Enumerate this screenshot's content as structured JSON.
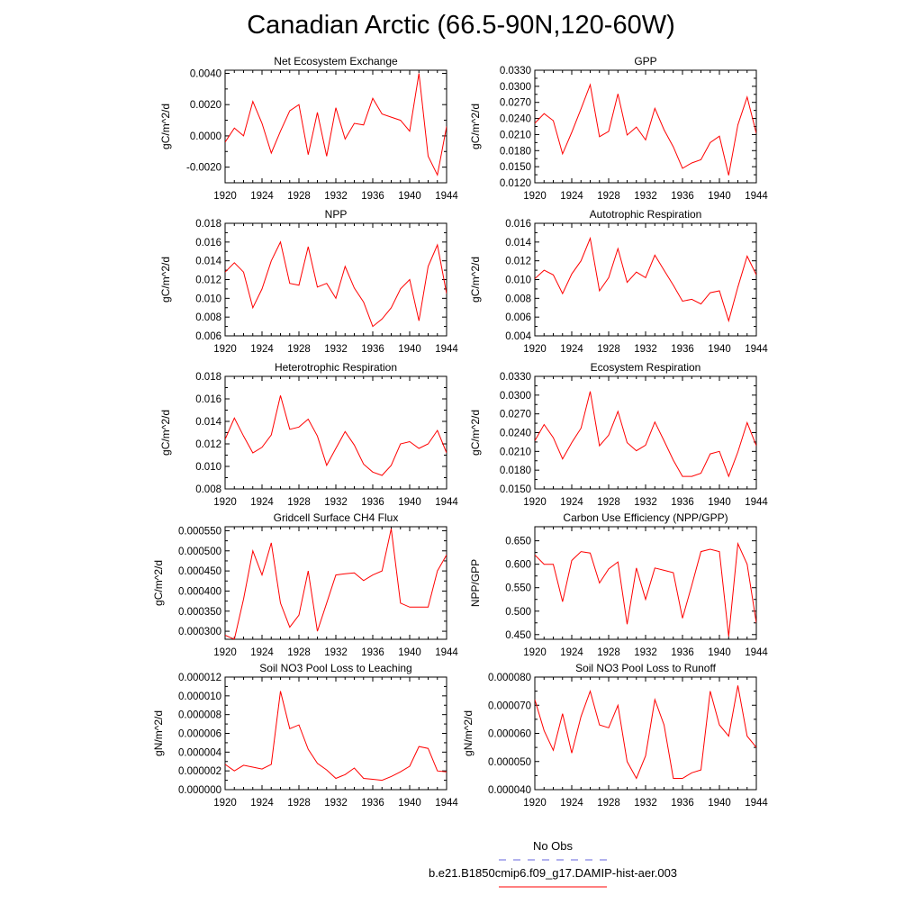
{
  "title": "Canadian Arctic (66.5-90N,120-60W)",
  "colors": {
    "series": "#ff0000",
    "obs": "#6666dd",
    "axis": "#000000"
  },
  "legend": {
    "obs_label": "No Obs",
    "case_label": "b.e21.B1850cmip6.f09_g17.DAMIP-hist-aer.003"
  },
  "chart_data": [
    {
      "type": "line",
      "title": "Net Ecosystem Exchange",
      "ylabel": "gC/m^2/d",
      "xlim": [
        1920,
        1944
      ],
      "ylim": [
        -0.003,
        0.0042
      ],
      "yticks": [
        -0.002,
        0.0,
        0.002,
        0.004
      ],
      "ytick_labels": [
        "-0.0020",
        "0.0000",
        "0.0020",
        "0.0040"
      ],
      "xticks": [
        1920,
        1924,
        1928,
        1932,
        1936,
        1940,
        1944
      ],
      "xtick_labels": [
        "1920",
        "1924",
        "1928",
        "1932",
        "1936",
        "1940",
        "1944"
      ],
      "x": [
        1920,
        1921,
        1922,
        1923,
        1924,
        1925,
        1926,
        1927,
        1928,
        1929,
        1930,
        1931,
        1932,
        1933,
        1934,
        1935,
        1936,
        1937,
        1938,
        1939,
        1940,
        1941,
        1942,
        1943,
        1944
      ],
      "values": [
        -0.0004,
        0.0005,
        0.0,
        0.0022,
        0.0008,
        -0.0011,
        0.0003,
        0.0016,
        0.002,
        -0.0012,
        0.0015,
        -0.0013,
        0.0018,
        -0.0002,
        0.0008,
        0.0007,
        0.0024,
        0.0014,
        0.0012,
        0.001,
        0.0003,
        0.004,
        -0.0013,
        -0.0025,
        0.0006
      ]
    },
    {
      "type": "line",
      "title": "GPP",
      "ylabel": "gC/m^2/d",
      "xlim": [
        1920,
        1944
      ],
      "ylim": [
        0.012,
        0.033
      ],
      "yticks": [
        0.012,
        0.015,
        0.018,
        0.021,
        0.024,
        0.027,
        0.03,
        0.033
      ],
      "ytick_labels": [
        "0.0120",
        "0.0150",
        "0.0180",
        "0.0210",
        "0.0240",
        "0.0270",
        "0.0300",
        "0.0330"
      ],
      "xticks": [
        1920,
        1924,
        1928,
        1932,
        1936,
        1940,
        1944
      ],
      "xtick_labels": [
        "1920",
        "1924",
        "1928",
        "1932",
        "1936",
        "1940",
        "1944"
      ],
      "x": [
        1920,
        1921,
        1922,
        1923,
        1924,
        1925,
        1926,
        1927,
        1928,
        1929,
        1930,
        1931,
        1932,
        1933,
        1934,
        1935,
        1936,
        1937,
        1938,
        1939,
        1940,
        1941,
        1942,
        1943,
        1944
      ],
      "values": [
        0.0231,
        0.0249,
        0.0236,
        0.0174,
        0.0214,
        0.0258,
        0.0303,
        0.0206,
        0.0216,
        0.0286,
        0.0209,
        0.0224,
        0.02,
        0.0259,
        0.0219,
        0.0187,
        0.0147,
        0.0157,
        0.0163,
        0.0195,
        0.0207,
        0.0134,
        0.0228,
        0.028,
        0.0212
      ]
    },
    {
      "type": "line",
      "title": "NPP",
      "ylabel": "gC/m^2/d",
      "xlim": [
        1920,
        1944
      ],
      "ylim": [
        0.006,
        0.018
      ],
      "yticks": [
        0.006,
        0.008,
        0.01,
        0.012,
        0.014,
        0.016,
        0.018
      ],
      "ytick_labels": [
        "0.006",
        "0.008",
        "0.010",
        "0.012",
        "0.014",
        "0.016",
        "0.018"
      ],
      "xticks": [
        1920,
        1924,
        1928,
        1932,
        1936,
        1940,
        1944
      ],
      "xtick_labels": [
        "1920",
        "1924",
        "1928",
        "1932",
        "1936",
        "1940",
        "1944"
      ],
      "x": [
        1920,
        1921,
        1922,
        1923,
        1924,
        1925,
        1926,
        1927,
        1928,
        1929,
        1930,
        1931,
        1932,
        1933,
        1934,
        1935,
        1936,
        1937,
        1938,
        1939,
        1940,
        1941,
        1942,
        1943,
        1944
      ],
      "values": [
        0.0128,
        0.0138,
        0.0128,
        0.009,
        0.011,
        0.014,
        0.016,
        0.0116,
        0.0114,
        0.0155,
        0.0112,
        0.0116,
        0.01,
        0.0134,
        0.0111,
        0.0096,
        0.007,
        0.0078,
        0.009,
        0.011,
        0.012,
        0.0076,
        0.0134,
        0.0157,
        0.0105
      ]
    },
    {
      "type": "line",
      "title": "Autotrophic Respiration",
      "ylabel": "gC/m^2/d",
      "xlim": [
        1920,
        1944
      ],
      "ylim": [
        0.004,
        0.016
      ],
      "yticks": [
        0.004,
        0.006,
        0.008,
        0.01,
        0.012,
        0.014,
        0.016
      ],
      "ytick_labels": [
        "0.004",
        "0.006",
        "0.008",
        "0.010",
        "0.012",
        "0.014",
        "0.016"
      ],
      "xticks": [
        1920,
        1924,
        1928,
        1932,
        1936,
        1940,
        1944
      ],
      "xtick_labels": [
        "1920",
        "1924",
        "1928",
        "1932",
        "1936",
        "1940",
        "1944"
      ],
      "x": [
        1920,
        1921,
        1922,
        1923,
        1924,
        1925,
        1926,
        1927,
        1928,
        1929,
        1930,
        1931,
        1932,
        1933,
        1934,
        1935,
        1936,
        1937,
        1938,
        1939,
        1940,
        1941,
        1942,
        1943,
        1944
      ],
      "values": [
        0.0101,
        0.011,
        0.0105,
        0.0085,
        0.0106,
        0.012,
        0.0144,
        0.0088,
        0.0102,
        0.0133,
        0.0097,
        0.0108,
        0.0102,
        0.0126,
        0.011,
        0.0094,
        0.0077,
        0.0079,
        0.0074,
        0.0086,
        0.0088,
        0.0056,
        0.0092,
        0.0125,
        0.0105
      ]
    },
    {
      "type": "line",
      "title": "Heterotrophic Respiration",
      "ylabel": "gC/m^2/d",
      "xlim": [
        1920,
        1944
      ],
      "ylim": [
        0.008,
        0.018
      ],
      "yticks": [
        0.008,
        0.01,
        0.012,
        0.014,
        0.016,
        0.018
      ],
      "ytick_labels": [
        "0.008",
        "0.010",
        "0.012",
        "0.014",
        "0.016",
        "0.018"
      ],
      "xticks": [
        1920,
        1924,
        1928,
        1932,
        1936,
        1940,
        1944
      ],
      "xtick_labels": [
        "1920",
        "1924",
        "1928",
        "1932",
        "1936",
        "1940",
        "1944"
      ],
      "x": [
        1920,
        1921,
        1922,
        1923,
        1924,
        1925,
        1926,
        1927,
        1928,
        1929,
        1930,
        1931,
        1932,
        1933,
        1934,
        1935,
        1936,
        1937,
        1938,
        1939,
        1940,
        1941,
        1942,
        1943,
        1944
      ],
      "values": [
        0.0124,
        0.0143,
        0.0127,
        0.0112,
        0.0117,
        0.0128,
        0.0163,
        0.0133,
        0.0135,
        0.0142,
        0.0127,
        0.0101,
        0.0116,
        0.0131,
        0.0119,
        0.0102,
        0.0095,
        0.0092,
        0.0101,
        0.012,
        0.0122,
        0.0116,
        0.012,
        0.0132,
        0.0112
      ]
    },
    {
      "type": "line",
      "title": "Ecosystem Respiration",
      "ylabel": "gC/m^2/d",
      "xlim": [
        1920,
        1944
      ],
      "ylim": [
        0.015,
        0.033
      ],
      "yticks": [
        0.015,
        0.018,
        0.021,
        0.024,
        0.027,
        0.03,
        0.033
      ],
      "ytick_labels": [
        "0.0150",
        "0.0180",
        "0.0210",
        "0.0240",
        "0.0270",
        "0.0300",
        "0.0330"
      ],
      "xticks": [
        1920,
        1924,
        1928,
        1932,
        1936,
        1940,
        1944
      ],
      "xtick_labels": [
        "1920",
        "1924",
        "1928",
        "1932",
        "1936",
        "1940",
        "1944"
      ],
      "x": [
        1920,
        1921,
        1922,
        1923,
        1924,
        1925,
        1926,
        1927,
        1928,
        1929,
        1930,
        1931,
        1932,
        1933,
        1934,
        1935,
        1936,
        1937,
        1938,
        1939,
        1940,
        1941,
        1942,
        1943,
        1944
      ],
      "values": [
        0.0227,
        0.0253,
        0.0232,
        0.0198,
        0.0224,
        0.0247,
        0.0306,
        0.0219,
        0.0236,
        0.0274,
        0.0224,
        0.0211,
        0.022,
        0.0257,
        0.0227,
        0.0196,
        0.017,
        0.017,
        0.0175,
        0.0206,
        0.021,
        0.017,
        0.0209,
        0.0256,
        0.0219
      ]
    },
    {
      "type": "line",
      "title": "Gridcell Surface CH4 Flux",
      "ylabel": "gC/m^2/d",
      "xlim": [
        1920,
        1944
      ],
      "ylim": [
        0.00028,
        0.00056
      ],
      "yticks": [
        0.0003,
        0.00035,
        0.0004,
        0.00045,
        0.0005,
        0.00055
      ],
      "ytick_labels": [
        "0.000300",
        "0.000350",
        "0.000400",
        "0.000450",
        "0.000500",
        "0.000550"
      ],
      "xticks": [
        1920,
        1924,
        1928,
        1932,
        1936,
        1940,
        1944
      ],
      "xtick_labels": [
        "1920",
        "1924",
        "1928",
        "1932",
        "1936",
        "1940",
        "1944"
      ],
      "x": [
        1920,
        1921,
        1922,
        1923,
        1924,
        1925,
        1926,
        1927,
        1928,
        1929,
        1930,
        1931,
        1932,
        1933,
        1934,
        1935,
        1936,
        1937,
        1938,
        1939,
        1940,
        1941,
        1942,
        1943,
        1944
      ],
      "values": [
        0.00029,
        0.00028,
        0.00038,
        0.0005,
        0.00044,
        0.00052,
        0.00037,
        0.00031,
        0.00034,
        0.00045,
        0.0003,
        0.00037,
        0.00044,
        0.000443,
        0.000445,
        0.000426,
        0.00044,
        0.00045,
        0.000555,
        0.00037,
        0.00036,
        0.00036,
        0.00036,
        0.00045,
        0.00049
      ]
    },
    {
      "type": "line",
      "title": "Carbon Use Efficiency (NPP/GPP)",
      "ylabel": "NPP/GPP",
      "xlim": [
        1920,
        1944
      ],
      "ylim": [
        0.44,
        0.68
      ],
      "yticks": [
        0.45,
        0.5,
        0.55,
        0.6,
        0.65
      ],
      "ytick_labels": [
        "0.450",
        "0.500",
        "0.550",
        "0.600",
        "0.650"
      ],
      "xticks": [
        1920,
        1924,
        1928,
        1932,
        1936,
        1940,
        1944
      ],
      "xtick_labels": [
        "1920",
        "1924",
        "1928",
        "1932",
        "1936",
        "1940",
        "1944"
      ],
      "x": [
        1920,
        1921,
        1922,
        1923,
        1924,
        1925,
        1926,
        1927,
        1928,
        1929,
        1930,
        1931,
        1932,
        1933,
        1934,
        1935,
        1936,
        1937,
        1938,
        1939,
        1940,
        1941,
        1942,
        1943,
        1944
      ],
      "values": [
        0.62,
        0.6,
        0.6,
        0.52,
        0.608,
        0.627,
        0.624,
        0.56,
        0.59,
        0.605,
        0.472,
        0.592,
        0.525,
        0.592,
        0.587,
        0.582,
        0.485,
        0.555,
        0.627,
        0.632,
        0.627,
        0.446,
        0.644,
        0.6,
        0.475
      ]
    },
    {
      "type": "line",
      "title": "Soil NO3 Pool Loss to Leaching",
      "ylabel": "gN/m^2/d",
      "xlim": [
        1920,
        1944
      ],
      "ylim": [
        0.0,
        1.2e-05
      ],
      "yticks": [
        0.0,
        2e-06,
        4e-06,
        6e-06,
        8e-06,
        1e-05,
        1.2e-05
      ],
      "ytick_labels": [
        "0.000000",
        "0.000002",
        "0.000004",
        "0.000006",
        "0.000008",
        "0.000010",
        "0.000012"
      ],
      "xticks": [
        1920,
        1924,
        1928,
        1932,
        1936,
        1940,
        1944
      ],
      "xtick_labels": [
        "1920",
        "1924",
        "1928",
        "1932",
        "1936",
        "1940",
        "1944"
      ],
      "x": [
        1920,
        1921,
        1922,
        1923,
        1924,
        1925,
        1926,
        1927,
        1928,
        1929,
        1930,
        1931,
        1932,
        1933,
        1934,
        1935,
        1936,
        1937,
        1938,
        1939,
        1940,
        1941,
        1942,
        1943,
        1944
      ],
      "values": [
        2.7e-06,
        2e-06,
        2.6e-06,
        2.4e-06,
        2.2e-06,
        2.7e-06,
        1.05e-05,
        6.5e-06,
        6.9e-06,
        4.3e-06,
        2.8e-06,
        2.1e-06,
        1.2e-06,
        1.6e-06,
        2.3e-06,
        1.2e-06,
        1.1e-06,
        1e-06,
        1.4e-06,
        1.9e-06,
        2.5e-06,
        4.6e-06,
        4.4e-06,
        2e-06,
        1.9e-06
      ]
    },
    {
      "type": "line",
      "title": "Soil NO3 Pool Loss to Runoff",
      "ylabel": "gN/m^2/d",
      "xlim": [
        1920,
        1944
      ],
      "ylim": [
        4e-05,
        8e-05
      ],
      "yticks": [
        4e-05,
        5e-05,
        6e-05,
        7e-05,
        8e-05
      ],
      "ytick_labels": [
        "0.000040",
        "0.000050",
        "0.000060",
        "0.000070",
        "0.000080"
      ],
      "xticks": [
        1920,
        1924,
        1928,
        1932,
        1936,
        1940,
        1944
      ],
      "xtick_labels": [
        "1920",
        "1924",
        "1928",
        "1932",
        "1936",
        "1940",
        "1944"
      ],
      "x": [
        1920,
        1921,
        1922,
        1923,
        1924,
        1925,
        1926,
        1927,
        1928,
        1929,
        1930,
        1931,
        1932,
        1933,
        1934,
        1935,
        1936,
        1937,
        1938,
        1939,
        1940,
        1941,
        1942,
        1943,
        1944
      ],
      "values": [
        7.2e-05,
        6.1e-05,
        5.4e-05,
        6.7e-05,
        5.3e-05,
        6.6e-05,
        7.5e-05,
        6.3e-05,
        6.2e-05,
        7e-05,
        5e-05,
        4.4e-05,
        5.2e-05,
        7.2e-05,
        6.3e-05,
        4.4e-05,
        4.4e-05,
        4.6e-05,
        4.7e-05,
        7.5e-05,
        6.3e-05,
        5.9e-05,
        7.7e-05,
        5.9e-05,
        5.5e-05
      ]
    }
  ]
}
